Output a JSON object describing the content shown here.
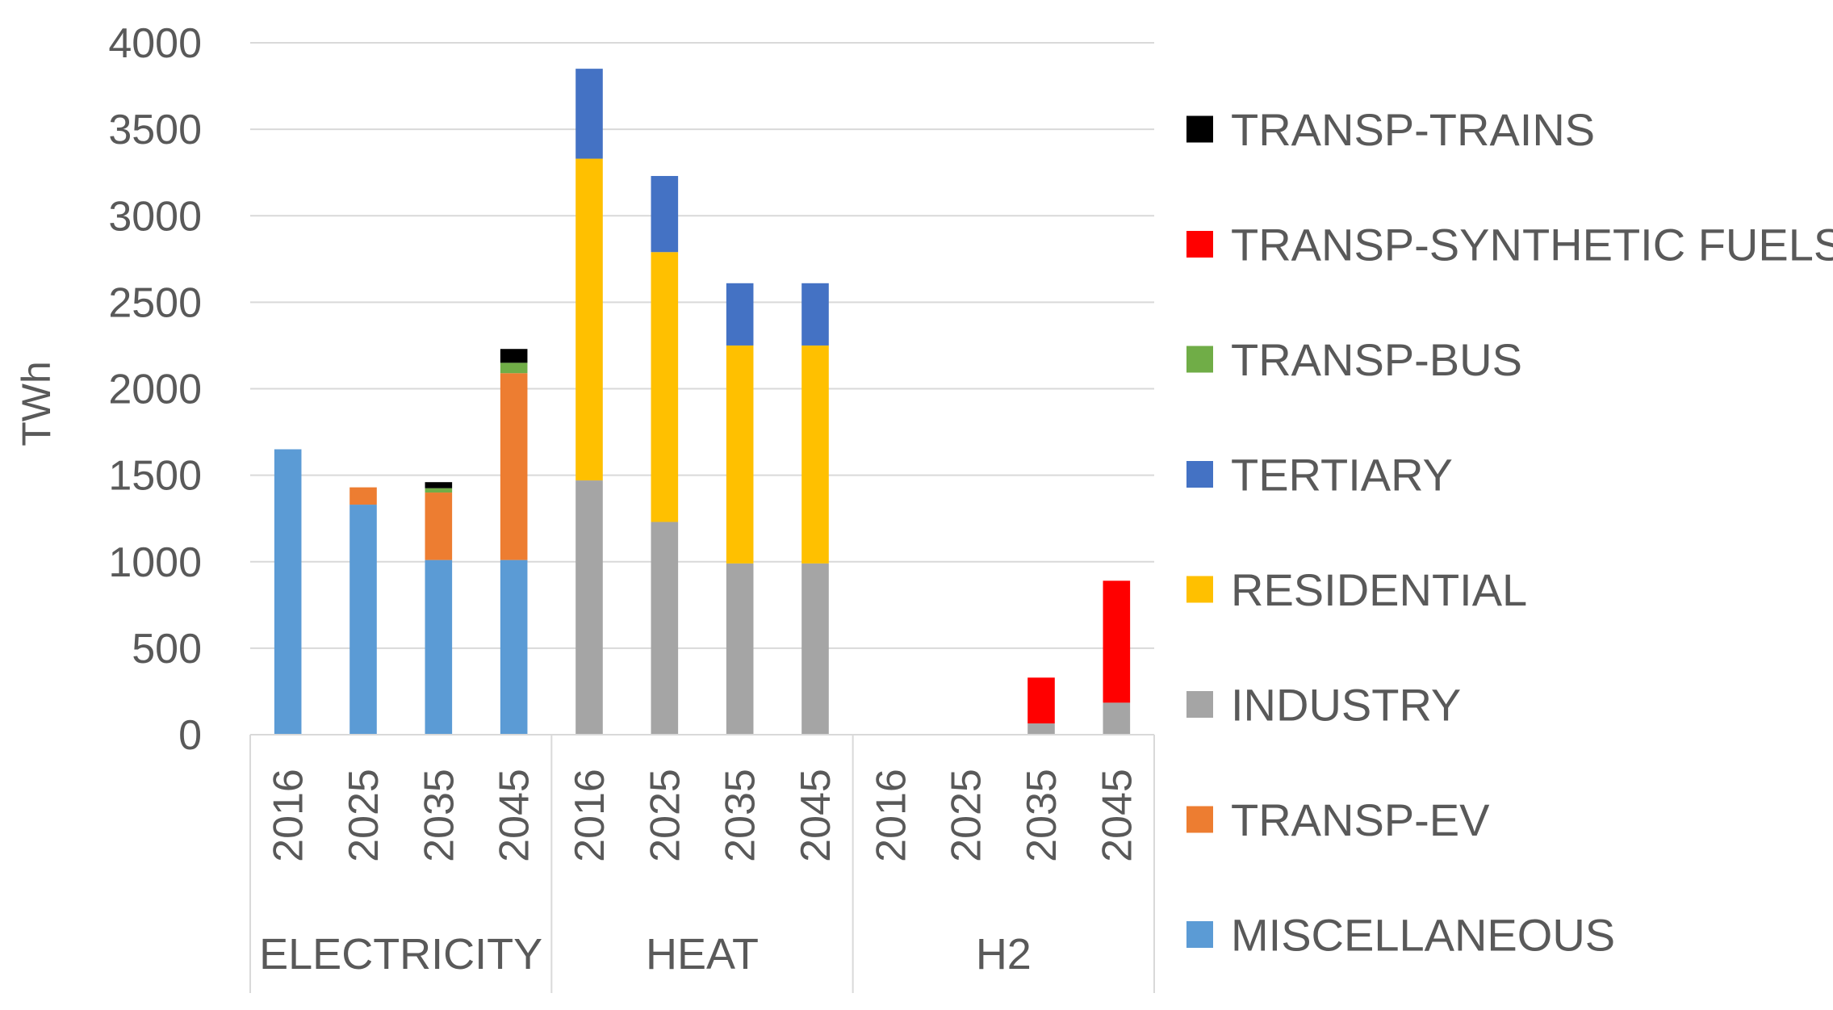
{
  "chart_data": {
    "type": "bar",
    "stacked": true,
    "title": "",
    "xlabel": "",
    "ylabel": "TWh",
    "ylim": [
      0,
      4000
    ],
    "yticks": [
      0,
      500,
      1000,
      1500,
      2000,
      2500,
      3000,
      3500,
      4000
    ],
    "grid": true,
    "legend_position": "right",
    "groups": [
      {
        "name": "ELECTRICITY",
        "categories": [
          "2016",
          "2025",
          "2035",
          "2045"
        ]
      },
      {
        "name": "HEAT",
        "categories": [
          "2016",
          "2025",
          "2035",
          "2045"
        ]
      },
      {
        "name": "H2",
        "categories": [
          "2016",
          "2025",
          "2035",
          "2045"
        ]
      }
    ],
    "series": [
      {
        "name": "MISCELLANEOUS",
        "color": "#5B9BD5",
        "values": [
          1650,
          1330,
          1010,
          1010,
          0,
          0,
          0,
          0,
          0,
          0,
          0,
          0
        ]
      },
      {
        "name": "TRANSP-EV",
        "color": "#ED7D31",
        "values": [
          0,
          100,
          390,
          1080,
          0,
          0,
          0,
          0,
          0,
          0,
          0,
          0
        ]
      },
      {
        "name": "INDUSTRY",
        "color": "#A5A5A5",
        "values": [
          0,
          0,
          0,
          0,
          1470,
          1230,
          990,
          990,
          0,
          0,
          65,
          185
        ]
      },
      {
        "name": "RESIDENTIAL",
        "color": "#FFC000",
        "values": [
          0,
          0,
          0,
          0,
          1860,
          1560,
          1260,
          1260,
          0,
          0,
          0,
          0
        ]
      },
      {
        "name": "TERTIARY",
        "color": "#4472C4",
        "values": [
          0,
          0,
          0,
          0,
          520,
          440,
          360,
          360,
          0,
          0,
          0,
          0
        ]
      },
      {
        "name": "TRANSP-BUS",
        "color": "#70AD47",
        "values": [
          0,
          0,
          25,
          60,
          0,
          0,
          0,
          0,
          0,
          0,
          0,
          0
        ]
      },
      {
        "name": "TRANSP-SYNTHETIC FUELS",
        "color": "#FF0000",
        "values": [
          0,
          0,
          0,
          0,
          0,
          0,
          0,
          0,
          0,
          0,
          265,
          705
        ]
      },
      {
        "name": "TRANSP-TRAINS",
        "color": "#000000",
        "values": [
          0,
          0,
          35,
          80,
          0,
          0,
          0,
          0,
          0,
          0,
          0,
          0
        ]
      }
    ],
    "legend_order": [
      "TRANSP-TRAINS",
      "TRANSP-SYNTHETIC FUELS",
      "TRANSP-BUS",
      "TERTIARY",
      "RESIDENTIAL",
      "INDUSTRY",
      "TRANSP-EV",
      "MISCELLANEOUS"
    ]
  }
}
